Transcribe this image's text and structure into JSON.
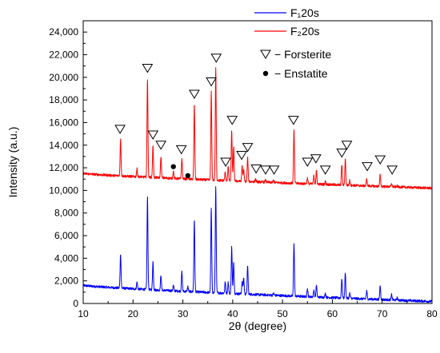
{
  "chart_data": {
    "type": "line",
    "xlabel": "2θ (degree)",
    "ylabel": "Intensity (a.u.)",
    "xlim": [
      10,
      80
    ],
    "ylim": [
      0,
      25000
    ],
    "xticks": [
      10,
      20,
      30,
      40,
      50,
      60,
      70,
      80
    ],
    "yticks": [
      0,
      2000,
      4000,
      6000,
      8000,
      10000,
      12000,
      14000,
      16000,
      18000,
      20000,
      22000,
      24000
    ],
    "ytick_labels": [
      "0",
      "2,000",
      "4,000",
      "6,000",
      "8,000",
      "10,000",
      "12,000",
      "14,000",
      "16,000",
      "18,000",
      "20,000",
      "22,000",
      "24,000"
    ],
    "grid": false,
    "legend_position": "top-right",
    "series": [
      {
        "name": "F₁20s",
        "color": "#0000ff",
        "baseline_start": 1600,
        "baseline_end": 180,
        "peaks": [
          {
            "x": 17.5,
            "y": 4400
          },
          {
            "x": 20.8,
            "y": 1900
          },
          {
            "x": 22.9,
            "y": 9400
          },
          {
            "x": 24.0,
            "y": 3700
          },
          {
            "x": 25.6,
            "y": 2500
          },
          {
            "x": 28.1,
            "y": 1600
          },
          {
            "x": 29.8,
            "y": 2800
          },
          {
            "x": 31.0,
            "y": 1500
          },
          {
            "x": 32.3,
            "y": 7400
          },
          {
            "x": 35.7,
            "y": 8400
          },
          {
            "x": 36.6,
            "y": 10400
          },
          {
            "x": 38.5,
            "y": 1900
          },
          {
            "x": 39.1,
            "y": 1900
          },
          {
            "x": 39.8,
            "y": 5000
          },
          {
            "x": 40.2,
            "y": 3700
          },
          {
            "x": 41.9,
            "y": 1900
          },
          {
            "x": 42.2,
            "y": 2300
          },
          {
            "x": 43.0,
            "y": 3300
          },
          {
            "x": 44.6,
            "y": 800
          },
          {
            "x": 46.6,
            "y": 700
          },
          {
            "x": 48.2,
            "y": 900
          },
          {
            "x": 52.3,
            "y": 5400
          },
          {
            "x": 55.0,
            "y": 1300
          },
          {
            "x": 56.3,
            "y": 1200
          },
          {
            "x": 56.8,
            "y": 1600
          },
          {
            "x": 58.6,
            "y": 900
          },
          {
            "x": 61.9,
            "y": 2200
          },
          {
            "x": 62.6,
            "y": 2700
          },
          {
            "x": 63.5,
            "y": 900
          },
          {
            "x": 66.9,
            "y": 1100
          },
          {
            "x": 69.6,
            "y": 1600
          },
          {
            "x": 71.9,
            "y": 800
          },
          {
            "x": 73.0,
            "y": 500
          }
        ]
      },
      {
        "name": "F₂20s",
        "color": "#ff0000",
        "baseline_start": 11500,
        "baseline_end": 10200,
        "peaks": [
          {
            "x": 17.5,
            "y": 14500
          },
          {
            "x": 20.8,
            "y": 11900
          },
          {
            "x": 22.9,
            "y": 19900
          },
          {
            "x": 24.0,
            "y": 14000
          },
          {
            "x": 25.6,
            "y": 13000
          },
          {
            "x": 28.1,
            "y": 11700
          },
          {
            "x": 29.8,
            "y": 12800
          },
          {
            "x": 31.0,
            "y": 11300
          },
          {
            "x": 32.3,
            "y": 17600
          },
          {
            "x": 35.7,
            "y": 18700
          },
          {
            "x": 36.6,
            "y": 20800
          },
          {
            "x": 38.5,
            "y": 11600
          },
          {
            "x": 39.1,
            "y": 12100
          },
          {
            "x": 39.8,
            "y": 15300
          },
          {
            "x": 40.2,
            "y": 13800
          },
          {
            "x": 41.9,
            "y": 12200
          },
          {
            "x": 42.2,
            "y": 11800
          },
          {
            "x": 43.0,
            "y": 12900
          },
          {
            "x": 44.6,
            "y": 11000
          },
          {
            "x": 46.6,
            "y": 10900
          },
          {
            "x": 48.2,
            "y": 10900
          },
          {
            "x": 52.3,
            "y": 15300
          },
          {
            "x": 55.0,
            "y": 11100
          },
          {
            "x": 56.3,
            "y": 11300
          },
          {
            "x": 56.8,
            "y": 11700
          },
          {
            "x": 58.6,
            "y": 10800
          },
          {
            "x": 61.9,
            "y": 12300
          },
          {
            "x": 62.6,
            "y": 12800
          },
          {
            "x": 63.5,
            "y": 10900
          },
          {
            "x": 66.9,
            "y": 11000
          },
          {
            "x": 69.6,
            "y": 11400
          },
          {
            "x": 71.9,
            "y": 10600
          },
          {
            "x": 73.0,
            "y": 10400
          }
        ]
      }
    ],
    "markers": {
      "forsterite": [
        {
          "x": 17.4,
          "y": 15400
        },
        {
          "x": 22.9,
          "y": 20800
        },
        {
          "x": 24.0,
          "y": 14900
        },
        {
          "x": 25.6,
          "y": 14000
        },
        {
          "x": 29.7,
          "y": 13600
        },
        {
          "x": 32.3,
          "y": 18500
        },
        {
          "x": 35.7,
          "y": 19600
        },
        {
          "x": 36.7,
          "y": 21700
        },
        {
          "x": 38.6,
          "y": 12500
        },
        {
          "x": 39.9,
          "y": 16200
        },
        {
          "x": 41.8,
          "y": 13100
        },
        {
          "x": 43.0,
          "y": 13800
        },
        {
          "x": 44.7,
          "y": 11900
        },
        {
          "x": 46.6,
          "y": 11800
        },
        {
          "x": 48.3,
          "y": 11800
        },
        {
          "x": 52.2,
          "y": 16200
        },
        {
          "x": 55.0,
          "y": 12500
        },
        {
          "x": 56.7,
          "y": 12800
        },
        {
          "x": 58.6,
          "y": 11800
        },
        {
          "x": 61.9,
          "y": 13300
        },
        {
          "x": 62.9,
          "y": 14000
        },
        {
          "x": 67.0,
          "y": 12100
        },
        {
          "x": 69.6,
          "y": 12700
        },
        {
          "x": 72.0,
          "y": 11800
        }
      ],
      "enstatite": [
        {
          "x": 28.1,
          "y": 12100
        },
        {
          "x": 31.0,
          "y": 11300
        }
      ]
    },
    "marker_legend": {
      "forsterite": "− Forsterite",
      "enstatite": "− Enstatite"
    }
  }
}
